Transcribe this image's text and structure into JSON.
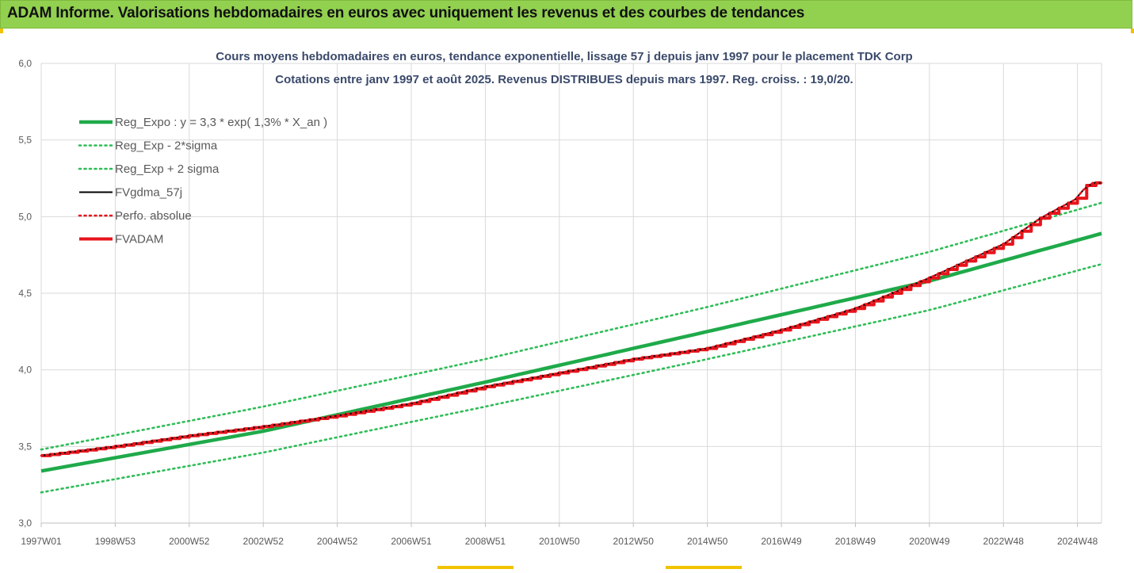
{
  "header": {
    "title": "ADAM Informe. Valorisations hebdomadaires en euros avec uniquement les revenus et des courbes de tendances"
  },
  "colors": {
    "banner": "#92d050",
    "reg_expo": "#1faa4a",
    "reg_band": "#2ebd57",
    "fvgdma": "#000000",
    "fvadam": "#e8141c",
    "perfo": "#e8141c"
  },
  "chart_data": {
    "type": "line",
    "title": "Cours moyens hebdomadaires en euros, tendance exponentielle, lissage 57 j depuis janv 1997  pour le placement TDK Corp",
    "subtitle": "Cotations entre janv 1997 et août 2025. Revenus DISTRIBUES depuis mars 1997. Reg. croiss. : 19,0/20.",
    "xlabel": "",
    "ylabel": "",
    "ylim": [
      3.0,
      6.0
    ],
    "yticks": [
      "3,0",
      "3,5",
      "4,0",
      "4,5",
      "5,0",
      "5,5",
      "6,0"
    ],
    "xlim": [
      1997.0,
      2025.65
    ],
    "xticks": [
      {
        "label": "1997W01",
        "x": 1997.0
      },
      {
        "label": "1998W53",
        "x": 1999.0
      },
      {
        "label": "2000W52",
        "x": 2001.0
      },
      {
        "label": "2002W52",
        "x": 2003.0
      },
      {
        "label": "2004W52",
        "x": 2005.0
      },
      {
        "label": "2006W51",
        "x": 2007.0
      },
      {
        "label": "2008W51",
        "x": 2009.0
      },
      {
        "label": "2010W50",
        "x": 2011.0
      },
      {
        "label": "2012W50",
        "x": 2013.0
      },
      {
        "label": "2014W50",
        "x": 2015.0
      },
      {
        "label": "2016W49",
        "x": 2017.0
      },
      {
        "label": "2018W49",
        "x": 2019.0
      },
      {
        "label": "2020W49",
        "x": 2021.0
      },
      {
        "label": "2022W48",
        "x": 2023.0
      },
      {
        "label": "2024W48",
        "x": 2025.0
      }
    ],
    "grid": true,
    "legend_position": "top-left",
    "series": [
      {
        "name": "Reg_Expo : y = 3,3 * exp( 1,3% *  X_an )",
        "style": "solid-thick",
        "color": "#1faa4a",
        "points": [
          [
            1997.0,
            3.34
          ],
          [
            2003.0,
            3.6
          ],
          [
            2009.0,
            3.92
          ],
          [
            2015.0,
            4.25
          ],
          [
            2021.0,
            4.58
          ],
          [
            2025.65,
            4.89
          ]
        ]
      },
      {
        "name": "Reg_Exp - 2*sigma",
        "style": "dotted",
        "color": "#2ebd57",
        "points": [
          [
            1997.0,
            3.2
          ],
          [
            2003.0,
            3.46
          ],
          [
            2009.0,
            3.76
          ],
          [
            2015.0,
            4.07
          ],
          [
            2021.0,
            4.39
          ],
          [
            2025.65,
            4.69
          ]
        ]
      },
      {
        "name": "Reg_Exp + 2 sigma",
        "style": "dotted",
        "color": "#2ebd57",
        "points": [
          [
            1997.0,
            3.48
          ],
          [
            2003.0,
            3.76
          ],
          [
            2009.0,
            4.07
          ],
          [
            2015.0,
            4.41
          ],
          [
            2021.0,
            4.77
          ],
          [
            2025.65,
            5.09
          ]
        ]
      },
      {
        "name": "FVgdma_57j",
        "style": "solid",
        "color": "#000000",
        "points": [
          [
            1997.0,
            3.44
          ],
          [
            1999.0,
            3.5
          ],
          [
            2001.0,
            3.57
          ],
          [
            2003.0,
            3.63
          ],
          [
            2005.0,
            3.7
          ],
          [
            2007.0,
            3.78
          ],
          [
            2009.0,
            3.89
          ],
          [
            2011.0,
            3.98
          ],
          [
            2013.0,
            4.07
          ],
          [
            2015.0,
            4.14
          ],
          [
            2017.0,
            4.26
          ],
          [
            2019.0,
            4.4
          ],
          [
            2021.0,
            4.6
          ],
          [
            2023.0,
            4.82
          ],
          [
            2024.0,
            4.99
          ],
          [
            2025.0,
            5.12
          ],
          [
            2025.3,
            5.22
          ],
          [
            2025.65,
            5.22
          ]
        ]
      },
      {
        "name": "Perfo. absolue",
        "style": "dotted",
        "color": "#e8141c",
        "points": [
          [
            1997.0,
            3.44
          ],
          [
            1999.0,
            3.5
          ],
          [
            2001.0,
            3.57
          ],
          [
            2003.0,
            3.63
          ],
          [
            2005.0,
            3.7
          ],
          [
            2007.0,
            3.78
          ],
          [
            2009.0,
            3.89
          ],
          [
            2011.0,
            3.98
          ],
          [
            2013.0,
            4.07
          ],
          [
            2015.0,
            4.14
          ],
          [
            2017.0,
            4.26
          ],
          [
            2019.0,
            4.4
          ],
          [
            2021.0,
            4.6
          ],
          [
            2023.0,
            4.82
          ],
          [
            2024.0,
            4.99
          ],
          [
            2025.0,
            5.12
          ],
          [
            2025.3,
            5.22
          ],
          [
            2025.65,
            5.22
          ]
        ]
      },
      {
        "name": "FVADAM",
        "style": "step-thick",
        "color": "#e8141c",
        "points": [
          [
            1997.0,
            3.44
          ],
          [
            1999.0,
            3.5
          ],
          [
            2001.0,
            3.57
          ],
          [
            2003.0,
            3.63
          ],
          [
            2005.0,
            3.7
          ],
          [
            2007.0,
            3.78
          ],
          [
            2009.0,
            3.89
          ],
          [
            2011.0,
            3.98
          ],
          [
            2013.0,
            4.07
          ],
          [
            2015.0,
            4.14
          ],
          [
            2017.0,
            4.26
          ],
          [
            2019.0,
            4.4
          ],
          [
            2021.0,
            4.6
          ],
          [
            2023.0,
            4.82
          ],
          [
            2024.0,
            4.99
          ],
          [
            2025.0,
            5.12
          ],
          [
            2025.3,
            5.22
          ],
          [
            2025.65,
            5.22
          ]
        ]
      }
    ]
  }
}
